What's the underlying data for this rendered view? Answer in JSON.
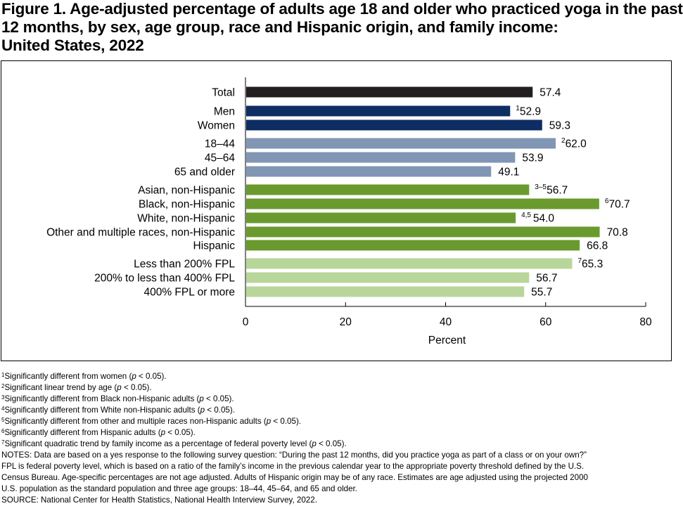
{
  "title": {
    "line1": "Figure 1. Age-adjusted percentage of adults age 18 and older who practiced yoga in the past",
    "line2": "12 months, by sex, age group, race and Hispanic origin, and family income:",
    "line3": "United States, 2022"
  },
  "chart_data": {
    "type": "bar",
    "orientation": "horizontal",
    "xlabel": "Percent",
    "xlim": [
      0,
      80
    ],
    "xticks": [
      0,
      20,
      40,
      60,
      80
    ],
    "grid": false,
    "colors": {
      "total": "#231f20",
      "sex": "#0e2d62",
      "age": "#8096b4",
      "race": "#6a9a2e",
      "income": "#b9d69a"
    },
    "categories": [
      "Total",
      "Men",
      "Women",
      "18–44",
      "45–64",
      "65 and older",
      "Asian, non-Hispanic",
      "Black, non-Hispanic",
      "White, non-Hispanic",
      "Other and multiple races, non-Hispanic",
      "Hispanic",
      "Less than 200% FPL",
      "200% to less than 400% FPL",
      "400% FPL or more"
    ],
    "groups": [
      "total",
      "sex",
      "sex",
      "age",
      "age",
      "age",
      "race",
      "race",
      "race",
      "race",
      "race",
      "income",
      "income",
      "income"
    ],
    "values": [
      57.4,
      52.9,
      59.3,
      62.0,
      53.9,
      49.1,
      56.7,
      70.7,
      54.0,
      70.8,
      66.8,
      65.3,
      56.7,
      55.7
    ],
    "value_labels": [
      "57.4",
      "52.9",
      "59.3",
      "62.0",
      "53.9",
      "49.1",
      "56.7",
      "70.7",
      "54.0",
      "70.8",
      "66.8",
      "65.3",
      "56.7",
      "55.7"
    ],
    "superscripts": [
      "",
      "1",
      "",
      "2",
      "",
      "",
      "3–5",
      "6",
      "4,5",
      "",
      "",
      "7",
      "",
      ""
    ]
  },
  "footnotes": [
    {
      "sup": "1",
      "pre": "Significantly different from women (",
      "p": "p",
      "post": " < 0.05)."
    },
    {
      "sup": "2",
      "pre": "Significant linear trend by age (",
      "p": "p",
      "post": " < 0.05)."
    },
    {
      "sup": "3",
      "pre": "Significantly different from Black non-Hispanic adults (",
      "p": "p",
      "post": " < 0.05)."
    },
    {
      "sup": "4",
      "pre": "Significantly different from White non-Hispanic adults (",
      "p": "p",
      "post": " < 0.05)."
    },
    {
      "sup": "5",
      "pre": "Significantly different from other and multiple races non-Hispanic adults (",
      "p": "p",
      "post": " < 0.05)."
    },
    {
      "sup": "6",
      "pre": "Significantly different from Hispanic adults (",
      "p": "p",
      "post": " < 0.05)."
    },
    {
      "sup": "7",
      "pre": "Significant quadratic trend by family income as a percentage of federal poverty level (",
      "p": "p",
      "post": " < 0.05)."
    }
  ],
  "notes": [
    "NOTES: Data are based on a yes response to the following survey question: “During the past 12 months, did you practice yoga as part of a class or on your own?”",
    "FPL is federal poverty level, which is based on a ratio of the family’s income in the previous calendar year to the appropriate poverty threshold defined by the U.S.",
    "Census Bureau. Age-specific percentages are not age adjusted. Adults of Hispanic origin may be of any race. Estimates are age adjusted using the projected 2000",
    "U.S. population as the standard population and three age groups: 18–44, 45–64, and 65 and older."
  ],
  "source": "SOURCE: National Center for Health Statistics, National Health Interview Survey, 2022."
}
